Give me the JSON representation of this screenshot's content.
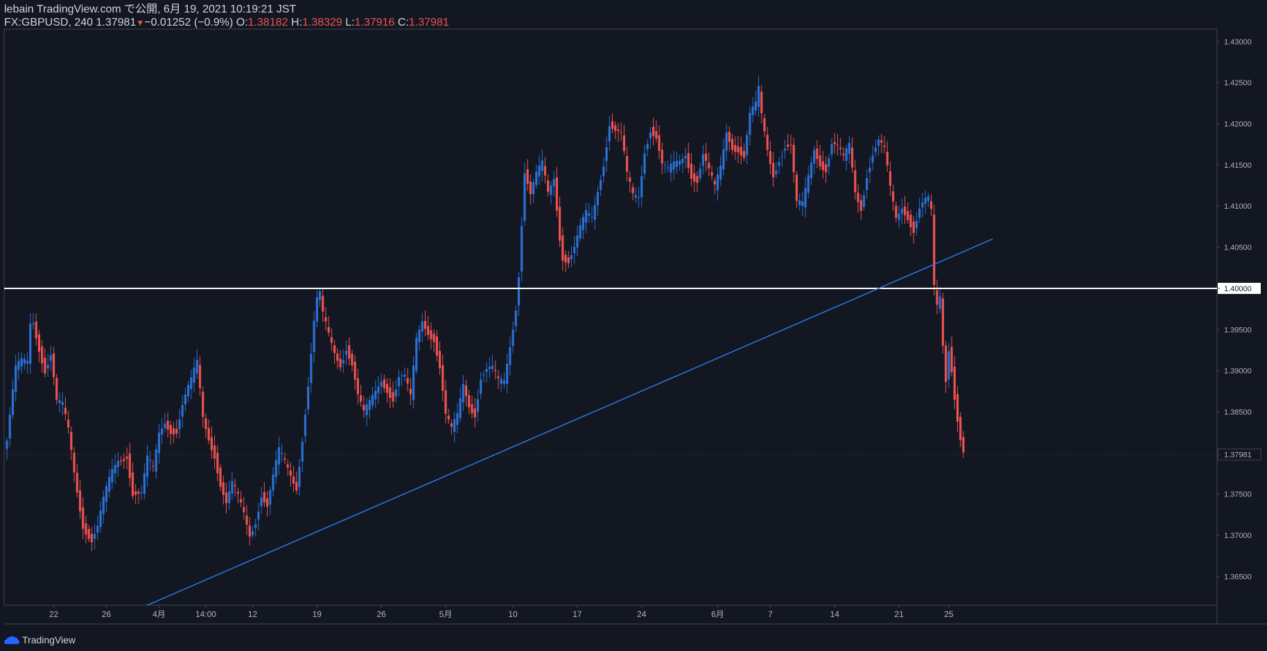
{
  "header": {
    "publish_line": "lebain TradingView.com で公開, 6月 19, 2021 10:19:21 JST",
    "symbol": "FX:GBPUSD, 240",
    "last": "1.37981",
    "change": "−0.01252 (−0.9%)",
    "o_label": "O:",
    "o_value": "1.38182",
    "h_label": "H:",
    "h_value": "1.38329",
    "l_label": "L:",
    "l_value": "1.37916",
    "c_label": "C:",
    "c_value": "1.37981"
  },
  "footer": {
    "brand": "TradingView",
    "icon": "tradingview-cloud-icon"
  },
  "colors": {
    "background": "#131722",
    "up": "#2a72d6",
    "down": "#ef5350",
    "trendline": "#2a7ae2",
    "level": "#ffffff",
    "axis_text": "#b2b5be"
  },
  "chart_data": {
    "type": "candlestick",
    "symbol": "FX:GBPUSD",
    "interval": "240",
    "ylim": [
      1.3615,
      1.4315
    ],
    "y_ticks": [
      "1.43000",
      "1.42500",
      "1.42000",
      "1.41500",
      "1.41000",
      "1.40500",
      "1.40000",
      "1.39500",
      "1.39000",
      "1.38500",
      "1.37981",
      "1.37500",
      "1.37000",
      "1.36500"
    ],
    "y_tick_values": [
      1.43,
      1.425,
      1.42,
      1.415,
      1.41,
      1.405,
      1.4,
      1.395,
      1.39,
      1.385,
      1.37981,
      1.375,
      1.37,
      1.365
    ],
    "highlighted_y_labels": [
      "1.40000",
      "1.37981"
    ],
    "x_ticks": [
      {
        "label": "22",
        "bar": 16
      },
      {
        "label": "26",
        "bar": 34
      },
      {
        "label": "4月",
        "bar": 52
      },
      {
        "label": "14:00",
        "bar": 68
      },
      {
        "label": "12",
        "bar": 84
      },
      {
        "label": "19",
        "bar": 106
      },
      {
        "label": "26",
        "bar": 128
      },
      {
        "label": "5月",
        "bar": 150
      },
      {
        "label": "10",
        "bar": 173
      },
      {
        "label": "17",
        "bar": 195
      },
      {
        "label": "24",
        "bar": 217
      },
      {
        "label": "6月",
        "bar": 243
      },
      {
        "label": "7",
        "bar": 261
      },
      {
        "label": "14",
        "bar": 283
      },
      {
        "label": "21",
        "bar": 305
      },
      {
        "label": "25",
        "bar": 322
      }
    ],
    "last_price": 1.37981,
    "horizontal_level": 1.4,
    "trendline": {
      "from": {
        "bar": 46,
        "price": 1.3612
      },
      "to": {
        "bar": 337,
        "price": 1.406
      }
    },
    "keypoints": [
      [
        0,
        1.3815
      ],
      [
        3,
        1.3895
      ],
      [
        5,
        1.3905
      ],
      [
        7,
        1.391
      ],
      [
        8,
        1.396
      ],
      [
        9,
        1.3965
      ],
      [
        11,
        1.3935
      ],
      [
        13,
        1.3905
      ],
      [
        15,
        1.3918
      ],
      [
        17,
        1.3855
      ],
      [
        19,
        1.385
      ],
      [
        21,
        1.3825
      ],
      [
        23,
        1.378
      ],
      [
        26,
        1.372
      ],
      [
        29,
        1.3695
      ],
      [
        31,
        1.3705
      ],
      [
        33,
        1.3735
      ],
      [
        36,
        1.3775
      ],
      [
        38,
        1.3795
      ],
      [
        41,
        1.3805
      ],
      [
        43,
        1.3755
      ],
      [
        46,
        1.3745
      ],
      [
        48,
        1.3785
      ],
      [
        50,
        1.3775
      ],
      [
        52,
        1.3825
      ],
      [
        54,
        1.3845
      ],
      [
        56,
        1.3835
      ],
      [
        58,
        1.383
      ],
      [
        60,
        1.3855
      ],
      [
        63,
        1.388
      ],
      [
        65,
        1.3905
      ],
      [
        67,
        1.3845
      ],
      [
        69,
        1.3825
      ],
      [
        71,
        1.3805
      ],
      [
        73,
        1.3765
      ],
      [
        75,
        1.3735
      ],
      [
        77,
        1.3755
      ],
      [
        79,
        1.374
      ],
      [
        81,
        1.3725
      ],
      [
        83,
        1.3705
      ],
      [
        85,
        1.3725
      ],
      [
        87,
        1.3755
      ],
      [
        89,
        1.3735
      ],
      [
        91,
        1.3765
      ],
      [
        93,
        1.3795
      ],
      [
        95,
        1.3785
      ],
      [
        97,
        1.3775
      ],
      [
        99,
        1.3765
      ],
      [
        101,
        1.3825
      ],
      [
        103,
        1.3885
      ],
      [
        105,
        1.3955
      ],
      [
        106,
        1.398
      ],
      [
        107,
        1.3985
      ],
      [
        108,
        1.396
      ],
      [
        110,
        1.394
      ],
      [
        112,
        1.3925
      ],
      [
        114,
        1.3915
      ],
      [
        116,
        1.3935
      ],
      [
        118,
        1.391
      ],
      [
        120,
        1.3865
      ],
      [
        122,
        1.384
      ],
      [
        124,
        1.3855
      ],
      [
        126,
        1.3875
      ],
      [
        128,
        1.3895
      ],
      [
        130,
        1.3885
      ],
      [
        132,
        1.387
      ],
      [
        134,
        1.389
      ],
      [
        136,
        1.3885
      ],
      [
        138,
        1.386
      ],
      [
        140,
        1.3935
      ],
      [
        142,
        1.3965
      ],
      [
        144,
        1.3955
      ],
      [
        146,
        1.3945
      ],
      [
        148,
        1.3905
      ],
      [
        150,
        1.384
      ],
      [
        152,
        1.382
      ],
      [
        154,
        1.384
      ],
      [
        156,
        1.3885
      ],
      [
        158,
        1.3865
      ],
      [
        160,
        1.3855
      ],
      [
        162,
        1.3895
      ],
      [
        164,
        1.3898
      ],
      [
        166,
        1.3895
      ],
      [
        168,
        1.388
      ],
      [
        170,
        1.3885
      ],
      [
        172,
        1.3935
      ],
      [
        174,
        1.3985
      ],
      [
        175,
        1.4025
      ],
      [
        176,
        1.4085
      ],
      [
        177,
        1.4145
      ],
      [
        179,
        1.411
      ],
      [
        181,
        1.413
      ],
      [
        183,
        1.4145
      ],
      [
        185,
        1.4115
      ],
      [
        187,
        1.414
      ],
      [
        189,
        1.407
      ],
      [
        190,
        1.4045
      ],
      [
        192,
        1.4035
      ],
      [
        194,
        1.4045
      ],
      [
        196,
        1.4065
      ],
      [
        198,
        1.4085
      ],
      [
        200,
        1.4085
      ],
      [
        202,
        1.4125
      ],
      [
        204,
        1.416
      ],
      [
        206,
        1.4205
      ],
      [
        208,
        1.419
      ],
      [
        210,
        1.418
      ],
      [
        212,
        1.413
      ],
      [
        214,
        1.411
      ],
      [
        216,
        1.4115
      ],
      [
        218,
        1.4175
      ],
      [
        220,
        1.42
      ],
      [
        222,
        1.4185
      ],
      [
        224,
        1.4145
      ],
      [
        226,
        1.4135
      ],
      [
        228,
        1.4145
      ],
      [
        230,
        1.4155
      ],
      [
        232,
        1.417
      ],
      [
        234,
        1.4145
      ],
      [
        236,
        1.4135
      ],
      [
        238,
        1.416
      ],
      [
        240,
        1.4135
      ],
      [
        242,
        1.4115
      ],
      [
        244,
        1.4145
      ],
      [
        246,
        1.4195
      ],
      [
        248,
        1.418
      ],
      [
        250,
        1.4175
      ],
      [
        252,
        1.416
      ],
      [
        254,
        1.4205
      ],
      [
        256,
        1.4215
      ],
      [
        257,
        1.4235
      ],
      [
        258,
        1.4205
      ],
      [
        260,
        1.417
      ],
      [
        262,
        1.4145
      ],
      [
        264,
        1.4165
      ],
      [
        266,
        1.4175
      ],
      [
        268,
        1.417
      ],
      [
        270,
        1.4095
      ],
      [
        272,
        1.4095
      ],
      [
        274,
        1.4135
      ],
      [
        276,
        1.4175
      ],
      [
        278,
        1.416
      ],
      [
        280,
        1.415
      ],
      [
        282,
        1.4175
      ],
      [
        284,
        1.4165
      ],
      [
        286,
        1.415
      ],
      [
        288,
        1.417
      ],
      [
        290,
        1.412
      ],
      [
        292,
        1.4105
      ],
      [
        294,
        1.4145
      ],
      [
        296,
        1.4165
      ],
      [
        298,
        1.4175
      ],
      [
        300,
        1.416
      ],
      [
        302,
        1.4115
      ],
      [
        304,
        1.4085
      ],
      [
        306,
        1.4105
      ],
      [
        308,
        1.4095
      ],
      [
        310,
        1.4075
      ],
      [
        312,
        1.4095
      ],
      [
        314,
        1.41
      ],
      [
        315,
        1.41
      ],
      [
        316,
        1.4085
      ],
      [
        317,
        1.3995
      ],
      [
        318,
        1.3975
      ],
      [
        319,
        1.399
      ],
      [
        320,
        1.3935
      ],
      [
        321,
        1.3895
      ],
      [
        322,
        1.3935
      ],
      [
        323,
        1.391
      ],
      [
        324,
        1.3875
      ],
      [
        325,
        1.3845
      ],
      [
        326,
        1.3818
      ],
      [
        327,
        1.3798
      ]
    ]
  }
}
